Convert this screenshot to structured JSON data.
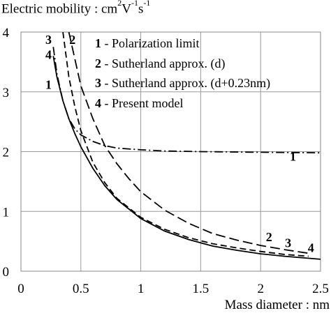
{
  "chart_data": {
    "type": "line",
    "ylabel": {
      "prefix": "Electric mobility : cm",
      "sup1": "2",
      "mid": "V",
      "sup2": "-1",
      "mid2": "s",
      "sup3": "-1"
    },
    "xlabel": "Mass diameter : nm",
    "xlim": [
      0,
      2.5
    ],
    "ylim": [
      0,
      4
    ],
    "xticks": [
      "0",
      "0.5",
      "1",
      "1.5",
      "2",
      "2.5"
    ],
    "yticks": [
      "0",
      "1",
      "2",
      "3",
      "4"
    ],
    "grid": true,
    "legend_position": "top-right",
    "legend": [
      {
        "num": "1",
        "label": "- Polarization limit"
      },
      {
        "num": "2",
        "label": "- Sutherland approx. (d)"
      },
      {
        "num": "3",
        "label": "- Sutherland approx. (d+0.23nm)"
      },
      {
        "num": "4",
        "label": "- Present model"
      }
    ],
    "series": [
      {
        "id": "1",
        "style": "dash-dot",
        "points": [
          [
            0.27,
            3.75
          ],
          [
            0.3,
            3.3
          ],
          [
            0.35,
            2.85
          ],
          [
            0.4,
            2.55
          ],
          [
            0.45,
            2.38
          ],
          [
            0.5,
            2.28
          ],
          [
            0.6,
            2.17
          ],
          [
            0.7,
            2.1
          ],
          [
            0.8,
            2.06
          ],
          [
            1.0,
            2.03
          ],
          [
            1.2,
            2.01
          ],
          [
            1.5,
            2.0
          ],
          [
            2.0,
            1.99
          ],
          [
            2.5,
            1.98
          ]
        ]
      },
      {
        "id": "2",
        "style": "long-dash",
        "points": [
          [
            0.4,
            4.0
          ],
          [
            0.45,
            3.55
          ],
          [
            0.5,
            3.1
          ],
          [
            0.6,
            2.55
          ],
          [
            0.7,
            2.1
          ],
          [
            0.8,
            1.8
          ],
          [
            0.9,
            1.55
          ],
          [
            1.0,
            1.33
          ],
          [
            1.2,
            1.02
          ],
          [
            1.4,
            0.8
          ],
          [
            1.6,
            0.63
          ],
          [
            1.8,
            0.52
          ],
          [
            2.0,
            0.43
          ],
          [
            2.2,
            0.36
          ],
          [
            2.4,
            0.3
          ]
        ]
      },
      {
        "id": "3",
        "style": "dashed",
        "points": [
          [
            0.35,
            4.0
          ],
          [
            0.4,
            3.25
          ],
          [
            0.45,
            2.75
          ],
          [
            0.5,
            2.35
          ],
          [
            0.6,
            1.82
          ],
          [
            0.7,
            1.48
          ],
          [
            0.8,
            1.22
          ],
          [
            1.0,
            0.9
          ],
          [
            1.2,
            0.7
          ],
          [
            1.4,
            0.56
          ],
          [
            1.6,
            0.46
          ],
          [
            1.8,
            0.39
          ],
          [
            2.0,
            0.33
          ],
          [
            2.2,
            0.28
          ],
          [
            2.4,
            0.25
          ]
        ]
      },
      {
        "id": "4",
        "style": "solid",
        "points": [
          [
            0.27,
            3.6
          ],
          [
            0.3,
            3.25
          ],
          [
            0.35,
            2.85
          ],
          [
            0.4,
            2.55
          ],
          [
            0.45,
            2.3
          ],
          [
            0.5,
            2.08
          ],
          [
            0.6,
            1.72
          ],
          [
            0.7,
            1.43
          ],
          [
            0.8,
            1.2
          ],
          [
            1.0,
            0.88
          ],
          [
            1.2,
            0.67
          ],
          [
            1.4,
            0.53
          ],
          [
            1.6,
            0.42
          ],
          [
            1.8,
            0.35
          ],
          [
            2.0,
            0.29
          ],
          [
            2.2,
            0.25
          ],
          [
            2.5,
            0.2
          ]
        ]
      }
    ],
    "curve_labels": [
      {
        "text": "1",
        "x": 2.27,
        "y": 1.85,
        "bold": true
      },
      {
        "text": "2",
        "x": 2.07,
        "y": 0.5,
        "bold": true
      },
      {
        "text": "3",
        "x": 2.23,
        "y": 0.4,
        "bold": true
      },
      {
        "text": "4",
        "x": 2.42,
        "y": 0.32,
        "bold": true
      },
      {
        "text": "3",
        "x": 0.23,
        "y": 3.8,
        "bold": true
      },
      {
        "text": "2",
        "x": 0.43,
        "y": 3.8,
        "bold": true
      },
      {
        "text": "4",
        "x": 0.23,
        "y": 3.55,
        "bold": true
      },
      {
        "text": "1",
        "x": 0.23,
        "y": 3.05,
        "bold": true
      }
    ]
  }
}
